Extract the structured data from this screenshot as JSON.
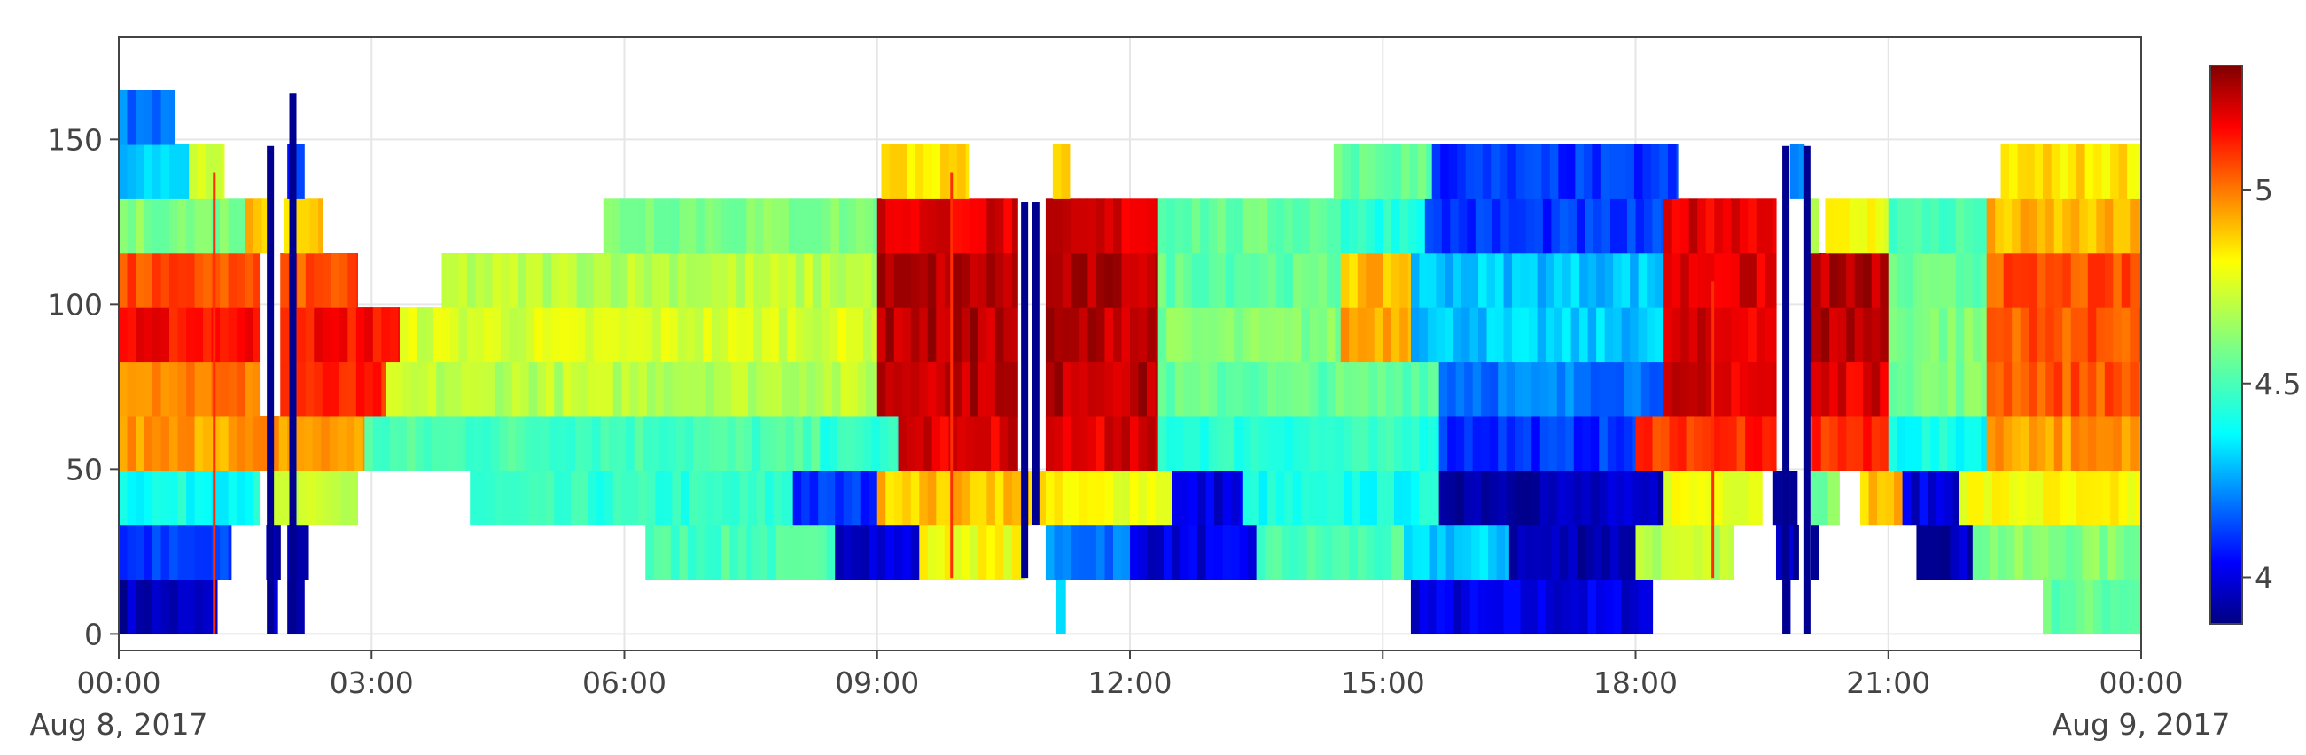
{
  "chart_data": {
    "type": "heatmap",
    "title": "",
    "xlabel": "",
    "ylabel": "",
    "x_range": [
      "2017-08-08 00:00",
      "2017-08-09 00:00"
    ],
    "y_range": [
      -5,
      181
    ],
    "grid": true,
    "x_ticks": [
      {
        "time": "2017-08-08 00:00",
        "label": "00:00",
        "sublabel": "Aug 8, 2017"
      },
      {
        "time": "2017-08-08 03:00",
        "label": "03:00",
        "sublabel": ""
      },
      {
        "time": "2017-08-08 06:00",
        "label": "06:00",
        "sublabel": ""
      },
      {
        "time": "2017-08-08 09:00",
        "label": "09:00",
        "sublabel": ""
      },
      {
        "time": "2017-08-08 12:00",
        "label": "12:00",
        "sublabel": ""
      },
      {
        "time": "2017-08-08 15:00",
        "label": "15:00",
        "sublabel": ""
      },
      {
        "time": "2017-08-08 18:00",
        "label": "18:00",
        "sublabel": ""
      },
      {
        "time": "2017-08-08 21:00",
        "label": "21:00",
        "sublabel": ""
      },
      {
        "time": "2017-08-09 00:00",
        "label": "00:00",
        "sublabel": "Aug 9, 2017"
      }
    ],
    "y_ticks": [
      {
        "value": 0,
        "label": "0"
      },
      {
        "value": 50,
        "label": "50"
      },
      {
        "value": 100,
        "label": "100"
      },
      {
        "value": 150,
        "label": "150"
      }
    ],
    "colorbar": {
      "min": 3.88,
      "max": 5.32,
      "ticks": [
        {
          "value": 4,
          "label": "4"
        },
        {
          "value": 4.5,
          "label": "4.5"
        },
        {
          "value": 5,
          "label": "5"
        }
      ],
      "colorscale": [
        [
          0.0,
          "#000080"
        ],
        [
          0.11,
          "#0000ff"
        ],
        [
          0.34,
          "#00ffff"
        ],
        [
          0.5,
          "#80ff80"
        ],
        [
          0.65,
          "#ffff00"
        ],
        [
          0.89,
          "#ff0000"
        ],
        [
          1.0,
          "#800000"
        ]
      ]
    },
    "row_height": 16.5,
    "rows": [
      {
        "y": 8.25,
        "x_start": "00:00",
        "x_end": "24:00",
        "segments": [
          {
            "from": "00:00",
            "to": "01:10",
            "value": 3.95
          },
          {
            "from": "01:47",
            "to": "01:53",
            "value": 3.95
          },
          {
            "from": "02:00",
            "to": "02:12",
            "value": 3.95
          },
          {
            "from": "11:07",
            "to": "11:14",
            "value": 4.3
          },
          {
            "from": "15:20",
            "to": "18:12",
            "value": 4.0
          },
          {
            "from": "19:46",
            "to": "19:50",
            "value": 3.95
          },
          {
            "from": "20:00",
            "to": "20:04",
            "value": 3.95
          },
          {
            "from": "22:50",
            "to": "24:00",
            "value": 4.55
          }
        ]
      },
      {
        "y": 24.75,
        "segments": [
          {
            "from": "00:00",
            "to": "01:20",
            "value": 4.1
          },
          {
            "from": "01:45",
            "to": "01:55",
            "value": 3.95
          },
          {
            "from": "02:00",
            "to": "02:15",
            "value": 3.95
          },
          {
            "from": "06:15",
            "to": "07:30",
            "value": 4.5
          },
          {
            "from": "07:30",
            "to": "08:30",
            "value": 4.5
          },
          {
            "from": "08:30",
            "to": "09:30",
            "value": 4.0
          },
          {
            "from": "09:30",
            "to": "10:45",
            "value": 4.8
          },
          {
            "from": "11:00",
            "to": "12:00",
            "value": 4.2
          },
          {
            "from": "12:00",
            "to": "13:30",
            "value": 4.0
          },
          {
            "from": "13:30",
            "to": "15:15",
            "value": 4.5
          },
          {
            "from": "15:15",
            "to": "16:30",
            "value": 4.3
          },
          {
            "from": "16:30",
            "to": "18:00",
            "value": 3.95
          },
          {
            "from": "18:00",
            "to": "19:10",
            "value": 4.7
          },
          {
            "from": "19:40",
            "to": "19:56",
            "value": 3.95
          },
          {
            "from": "20:05",
            "to": "20:10",
            "value": 3.95
          },
          {
            "from": "21:20",
            "to": "22:00",
            "value": 3.95
          },
          {
            "from": "22:00",
            "to": "24:00",
            "value": 4.6
          }
        ]
      },
      {
        "y": 41.25,
        "segments": [
          {
            "from": "00:00",
            "to": "01:40",
            "value": 4.4
          },
          {
            "from": "01:50",
            "to": "02:50",
            "value": 4.7
          },
          {
            "from": "04:10",
            "to": "08:00",
            "value": 4.45
          },
          {
            "from": "08:00",
            "to": "09:00",
            "value": 4.1
          },
          {
            "from": "09:00",
            "to": "11:00",
            "value": 4.9
          },
          {
            "from": "11:00",
            "to": "12:30",
            "value": 4.8
          },
          {
            "from": "12:30",
            "to": "13:20",
            "value": 4.0
          },
          {
            "from": "13:20",
            "to": "15:40",
            "value": 4.4
          },
          {
            "from": "15:40",
            "to": "18:20",
            "value": 3.95
          },
          {
            "from": "18:20",
            "to": "19:30",
            "value": 4.8
          },
          {
            "from": "19:38",
            "to": "19:55",
            "value": 3.95
          },
          {
            "from": "20:05",
            "to": "20:25",
            "value": 4.6
          },
          {
            "from": "20:40",
            "to": "21:10",
            "value": 4.9
          },
          {
            "from": "21:10",
            "to": "21:50",
            "value": 4.0
          },
          {
            "from": "21:50",
            "to": "24:00",
            "value": 4.8
          }
        ]
      },
      {
        "y": 57.75,
        "segments": [
          {
            "from": "00:00",
            "to": "02:55",
            "value": 4.95
          },
          {
            "from": "02:55",
            "to": "08:20",
            "value": 4.5
          },
          {
            "from": "08:20",
            "to": "09:15",
            "value": 4.45
          },
          {
            "from": "09:15",
            "to": "10:40",
            "value": 5.2
          },
          {
            "from": "11:00",
            "to": "12:20",
            "value": 5.2
          },
          {
            "from": "12:20",
            "to": "15:40",
            "value": 4.45
          },
          {
            "from": "15:40",
            "to": "18:00",
            "value": 4.1
          },
          {
            "from": "18:00",
            "to": "19:40",
            "value": 5.1
          },
          {
            "from": "20:00",
            "to": "21:00",
            "value": 5.1
          },
          {
            "from": "21:00",
            "to": "22:10",
            "value": 4.4
          },
          {
            "from": "22:10",
            "to": "24:00",
            "value": 4.95
          }
        ]
      },
      {
        "y": 74.25,
        "segments": [
          {
            "from": "00:00",
            "to": "01:40",
            "value": 5.0
          },
          {
            "from": "01:55",
            "to": "03:10",
            "value": 5.1
          },
          {
            "from": "03:10",
            "to": "09:00",
            "value": 4.7
          },
          {
            "from": "09:00",
            "to": "10:40",
            "value": 5.25
          },
          {
            "from": "11:00",
            "to": "12:20",
            "value": 5.25
          },
          {
            "from": "12:20",
            "to": "15:40",
            "value": 4.55
          },
          {
            "from": "15:40",
            "to": "18:20",
            "value": 4.2
          },
          {
            "from": "18:20",
            "to": "19:40",
            "value": 5.2
          },
          {
            "from": "20:00",
            "to": "21:00",
            "value": 5.2
          },
          {
            "from": "21:00",
            "to": "22:10",
            "value": 4.6
          },
          {
            "from": "22:10",
            "to": "24:00",
            "value": 5.05
          }
        ]
      },
      {
        "y": 90.75,
        "segments": [
          {
            "from": "00:00",
            "to": "01:40",
            "value": 5.15
          },
          {
            "from": "01:55",
            "to": "03:20",
            "value": 5.15
          },
          {
            "from": "03:20",
            "to": "09:00",
            "value": 4.75
          },
          {
            "from": "09:00",
            "to": "10:40",
            "value": 5.25
          },
          {
            "from": "11:00",
            "to": "12:20",
            "value": 5.25
          },
          {
            "from": "12:20",
            "to": "14:30",
            "value": 4.6
          },
          {
            "from": "14:30",
            "to": "15:20",
            "value": 4.95
          },
          {
            "from": "15:20",
            "to": "18:20",
            "value": 4.3
          },
          {
            "from": "18:20",
            "to": "19:40",
            "value": 5.2
          },
          {
            "from": "20:00",
            "to": "21:00",
            "value": 5.25
          },
          {
            "from": "21:00",
            "to": "22:10",
            "value": 4.6
          },
          {
            "from": "22:10",
            "to": "24:00",
            "value": 5.05
          }
        ]
      },
      {
        "y": 107.25,
        "segments": [
          {
            "from": "00:00",
            "to": "01:40",
            "value": 5.05
          },
          {
            "from": "01:55",
            "to": "02:50",
            "value": 5.05
          },
          {
            "from": "03:50",
            "to": "09:00",
            "value": 4.7
          },
          {
            "from": "09:00",
            "to": "10:40",
            "value": 5.25
          },
          {
            "from": "11:00",
            "to": "12:20",
            "value": 5.25
          },
          {
            "from": "12:20",
            "to": "14:30",
            "value": 4.55
          },
          {
            "from": "14:30",
            "to": "15:20",
            "value": 4.9
          },
          {
            "from": "15:20",
            "to": "18:20",
            "value": 4.3
          },
          {
            "from": "18:20",
            "to": "19:40",
            "value": 5.2
          },
          {
            "from": "20:00",
            "to": "21:00",
            "value": 5.25
          },
          {
            "from": "21:00",
            "to": "22:10",
            "value": 4.55
          },
          {
            "from": "22:10",
            "to": "24:00",
            "value": 5.05
          }
        ]
      },
      {
        "y": 123.75,
        "segments": [
          {
            "from": "00:00",
            "to": "01:30",
            "value": 4.6
          },
          {
            "from": "01:30",
            "to": "01:45",
            "value": 4.9
          },
          {
            "from": "01:58",
            "to": "02:25",
            "value": 4.9
          },
          {
            "from": "05:45",
            "to": "09:00",
            "value": 4.6
          },
          {
            "from": "09:00",
            "to": "10:40",
            "value": 5.2
          },
          {
            "from": "11:00",
            "to": "12:20",
            "value": 5.2
          },
          {
            "from": "12:20",
            "to": "14:30",
            "value": 4.55
          },
          {
            "from": "14:30",
            "to": "15:30",
            "value": 4.45
          },
          {
            "from": "15:30",
            "to": "18:20",
            "value": 4.1
          },
          {
            "from": "18:20",
            "to": "19:40",
            "value": 5.2
          },
          {
            "from": "20:00",
            "to": "20:10",
            "value": 4.7
          },
          {
            "from": "20:15",
            "to": "21:00",
            "value": 4.8
          },
          {
            "from": "21:00",
            "to": "22:10",
            "value": 4.5
          },
          {
            "from": "22:10",
            "to": "24:00",
            "value": 4.9
          }
        ]
      },
      {
        "y": 140.25,
        "segments": [
          {
            "from": "00:00",
            "to": "00:50",
            "value": 4.3
          },
          {
            "from": "00:50",
            "to": "01:15",
            "value": 4.75
          },
          {
            "from": "02:00",
            "to": "02:12",
            "value": 4.1
          },
          {
            "from": "09:03",
            "to": "10:05",
            "value": 4.85
          },
          {
            "from": "11:05",
            "to": "11:17",
            "value": 4.85
          },
          {
            "from": "14:25",
            "to": "15:35",
            "value": 4.55
          },
          {
            "from": "15:35",
            "to": "18:30",
            "value": 4.1
          },
          {
            "from": "19:50",
            "to": "20:00",
            "value": 4.2
          },
          {
            "from": "22:20",
            "to": "24:00",
            "value": 4.85
          }
        ]
      },
      {
        "y": 156.75,
        "segments": [
          {
            "from": "00:00",
            "to": "00:40",
            "value": 4.2
          }
        ]
      }
    ],
    "spikes": [
      {
        "time": "01:48",
        "y_from": 0,
        "y_to": 148,
        "value": 3.9
      },
      {
        "time": "02:04",
        "y_from": 0,
        "y_to": 164,
        "value": 3.9
      },
      {
        "time": "10:45",
        "y_from": 17,
        "y_to": 131,
        "value": 3.9
      },
      {
        "time": "10:53",
        "y_from": 33,
        "y_to": 131,
        "value": 3.9
      },
      {
        "time": "19:47",
        "y_from": 0,
        "y_to": 148,
        "value": 3.9
      },
      {
        "time": "20:02",
        "y_from": 0,
        "y_to": 148,
        "value": 3.9
      }
    ],
    "red_lines": [
      {
        "time": "01:08",
        "y_from": 0,
        "y_to": 140,
        "value": 5.1
      },
      {
        "time": "09:53",
        "y_from": 17,
        "y_to": 140,
        "value": 5.1
      },
      {
        "time": "18:55",
        "y_from": 17,
        "y_to": 107,
        "value": 5.1
      }
    ]
  }
}
